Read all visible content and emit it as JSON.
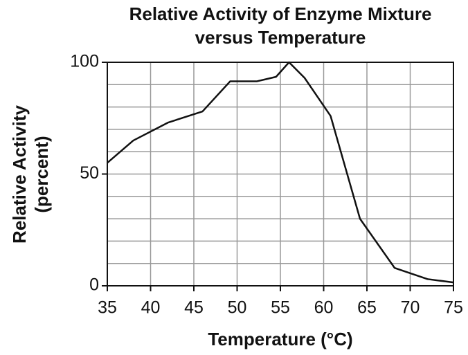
{
  "chart_data": {
    "type": "line",
    "title": [
      "Relative Activity of Enzyme Mixture",
      "versus Temperature"
    ],
    "x_label": "Temperature (°C)",
    "y_label": [
      "Relative Activity",
      "(percent)"
    ],
    "x": [
      35,
      38,
      42,
      46,
      49.2,
      52.3,
      54.5,
      56,
      57.8,
      60.8,
      64.2,
      68.2,
      72,
      75
    ],
    "series": [
      {
        "color": "#111111",
        "values": [
          55,
          65,
          73,
          78,
          91.5,
          91.5,
          93.5,
          100,
          93,
          76,
          30,
          8,
          3,
          1.5
        ]
      }
    ],
    "xlim": [
      35,
      75
    ],
    "xticks": [
      35,
      40,
      45,
      50,
      55,
      60,
      65,
      70,
      75
    ],
    "ylim": [
      0,
      100
    ],
    "yticks": [
      0,
      50,
      100
    ],
    "ygrid": [
      0,
      10,
      20,
      30,
      40,
      50,
      60,
      70,
      80,
      90,
      100
    ],
    "grid": true
  }
}
